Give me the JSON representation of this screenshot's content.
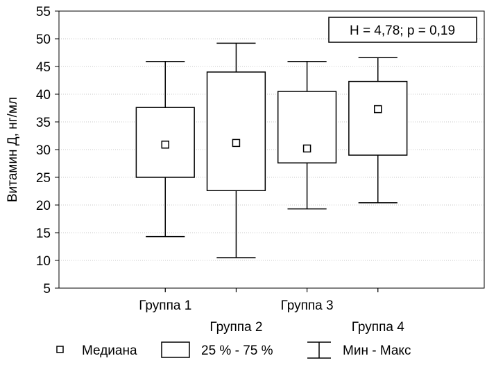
{
  "chart_data": {
    "type": "box",
    "ylabel": "Витамин Д, нг/мл",
    "ylim": [
      5,
      55
    ],
    "yticks": [
      5,
      10,
      15,
      20,
      25,
      30,
      35,
      40,
      45,
      50,
      55
    ],
    "grid": true,
    "annotation": "H = 4,78; p = 0,19",
    "categories": [
      "Группа 1",
      "Группа 2",
      "Группа 3",
      "Группа 4"
    ],
    "boxes": [
      {
        "category": "Группа 1",
        "min": 14.3,
        "q1": 25.0,
        "median": 30.9,
        "q3": 37.6,
        "max": 45.9
      },
      {
        "category": "Группа 2",
        "min": 10.5,
        "q1": 22.6,
        "median": 31.2,
        "q3": 44.0,
        "max": 49.2
      },
      {
        "category": "Группа 3",
        "min": 19.3,
        "q1": 27.6,
        "median": 30.2,
        "q3": 40.5,
        "max": 45.9
      },
      {
        "category": "Группа 4",
        "min": 20.4,
        "q1": 29.0,
        "median": 37.3,
        "q3": 42.3,
        "max": 46.6
      }
    ],
    "legend": {
      "position": "bottom",
      "median_label": "Медиана",
      "box_label": "25 % - 75 %",
      "whisker_label": "Мин - Макс"
    }
  }
}
